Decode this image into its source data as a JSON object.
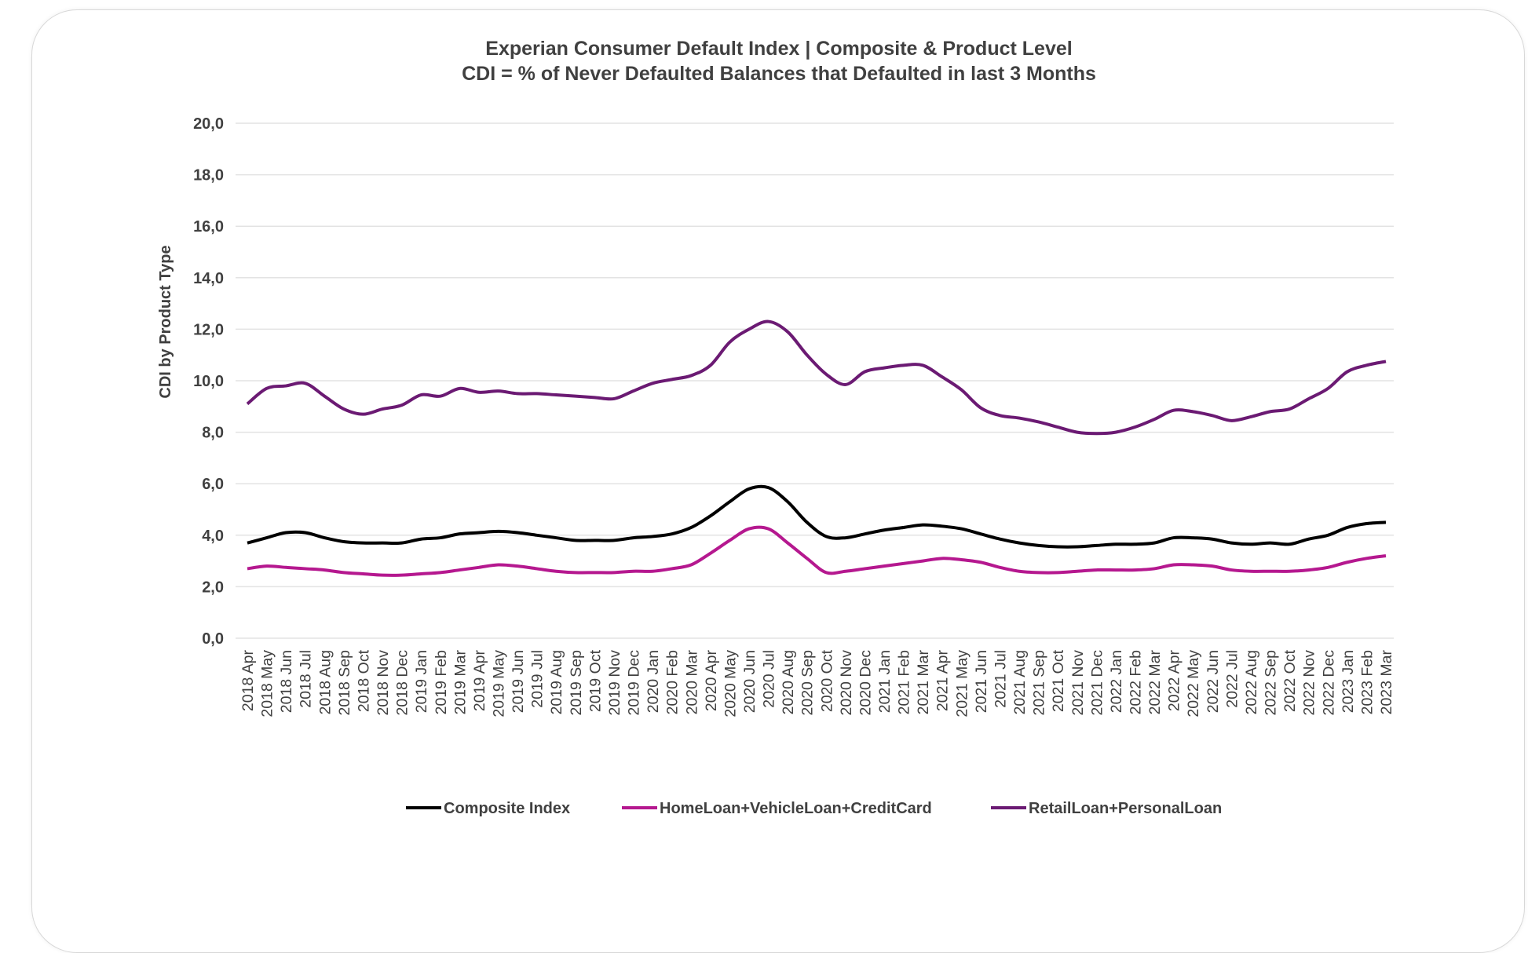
{
  "chart_data": {
    "type": "line",
    "title": "Experian Consumer Default Index | Composite & Product Level",
    "subtitle": "CDI = % of Never Defaulted Balances that Defaulted in last 3 Months",
    "ylabel": "CDI by Product Type",
    "xlabel": "",
    "ylim": [
      0,
      20
    ],
    "yticks": [
      "0,0",
      "2,0",
      "4,0",
      "6,0",
      "8,0",
      "10,0",
      "12,0",
      "14,0",
      "16,0",
      "18,0",
      "20,0"
    ],
    "grid": true,
    "legend_position": "bottom",
    "categories": [
      "2018 Apr",
      "2018 May",
      "2018 Jun",
      "2018 Jul",
      "2018 Aug",
      "2018 Sep",
      "2018 Oct",
      "2018 Nov",
      "2018 Dec",
      "2019 Jan",
      "2019 Feb",
      "2019 Mar",
      "2019 Apr",
      "2019 May",
      "2019 Jun",
      "2019 Jul",
      "2019 Aug",
      "2019 Sep",
      "2019 Oct",
      "2019 Nov",
      "2019 Dec",
      "2020 Jan",
      "2020 Feb",
      "2020 Mar",
      "2020 Apr",
      "2020 May",
      "2020 Jun",
      "2020 Jul",
      "2020 Aug",
      "2020 Sep",
      "2020 Oct",
      "2020 Nov",
      "2020 Dec",
      "2021 Jan",
      "2021 Feb",
      "2021 Mar",
      "2021 Apr",
      "2021 May",
      "2021 Jun",
      "2021 Jul",
      "2021 Aug",
      "2021 Sep",
      "2021 Oct",
      "2021 Nov",
      "2021 Dec",
      "2022 Jan",
      "2022 Feb",
      "2022 Mar",
      "2022 Apr",
      "2022 May",
      "2022 Jun",
      "2022 Jul",
      "2022 Aug",
      "2022 Sep",
      "2022 Oct",
      "2022 Nov",
      "2022 Dec",
      "2023 Jan",
      "2023 Feb",
      "2023 Mar"
    ],
    "series": [
      {
        "name": "Composite Index",
        "color": "#000000",
        "values": [
          3.7,
          3.9,
          4.1,
          4.1,
          3.9,
          3.75,
          3.7,
          3.7,
          3.7,
          3.85,
          3.9,
          4.05,
          4.1,
          4.15,
          4.1,
          4.0,
          3.9,
          3.8,
          3.8,
          3.8,
          3.9,
          3.95,
          4.05,
          4.3,
          4.75,
          5.3,
          5.8,
          5.85,
          5.3,
          4.5,
          3.95,
          3.9,
          4.05,
          4.2,
          4.3,
          4.4,
          4.35,
          4.25,
          4.05,
          3.85,
          3.7,
          3.6,
          3.55,
          3.55,
          3.6,
          3.65,
          3.65,
          3.7,
          3.9,
          3.9,
          3.85,
          3.7,
          3.65,
          3.7,
          3.65,
          3.85,
          4.0,
          4.3,
          4.45,
          4.5
        ]
      },
      {
        "name": "HomeLoan+VehicleLoan+CreditCard",
        "color": "#b5188f",
        "values": [
          2.7,
          2.8,
          2.75,
          2.7,
          2.65,
          2.55,
          2.5,
          2.45,
          2.45,
          2.5,
          2.55,
          2.65,
          2.75,
          2.85,
          2.8,
          2.7,
          2.6,
          2.55,
          2.55,
          2.55,
          2.6,
          2.6,
          2.7,
          2.85,
          3.3,
          3.8,
          4.25,
          4.25,
          3.7,
          3.1,
          2.55,
          2.6,
          2.7,
          2.8,
          2.9,
          3.0,
          3.1,
          3.05,
          2.95,
          2.75,
          2.6,
          2.55,
          2.55,
          2.6,
          2.65,
          2.65,
          2.65,
          2.7,
          2.85,
          2.85,
          2.8,
          2.65,
          2.6,
          2.6,
          2.6,
          2.65,
          2.75,
          2.95,
          3.1,
          3.2
        ]
      },
      {
        "name": "RetailLoan+PersonalLoan",
        "color": "#6b1a73",
        "values": [
          9.1,
          9.7,
          9.8,
          9.9,
          9.4,
          8.9,
          8.7,
          8.9,
          9.05,
          9.45,
          9.4,
          9.7,
          9.55,
          9.6,
          9.5,
          9.5,
          9.45,
          9.4,
          9.35,
          9.3,
          9.6,
          9.9,
          10.05,
          10.2,
          10.6,
          11.5,
          12.0,
          12.3,
          11.9,
          11.0,
          10.25,
          9.85,
          10.35,
          10.5,
          10.6,
          10.6,
          10.15,
          9.65,
          8.95,
          8.65,
          8.55,
          8.4,
          8.2,
          8.0,
          7.95,
          8.0,
          8.2,
          8.5,
          8.85,
          8.8,
          8.65,
          8.45,
          8.6,
          8.8,
          8.9,
          9.3,
          9.7,
          10.35,
          10.6,
          10.75
        ]
      }
    ]
  }
}
